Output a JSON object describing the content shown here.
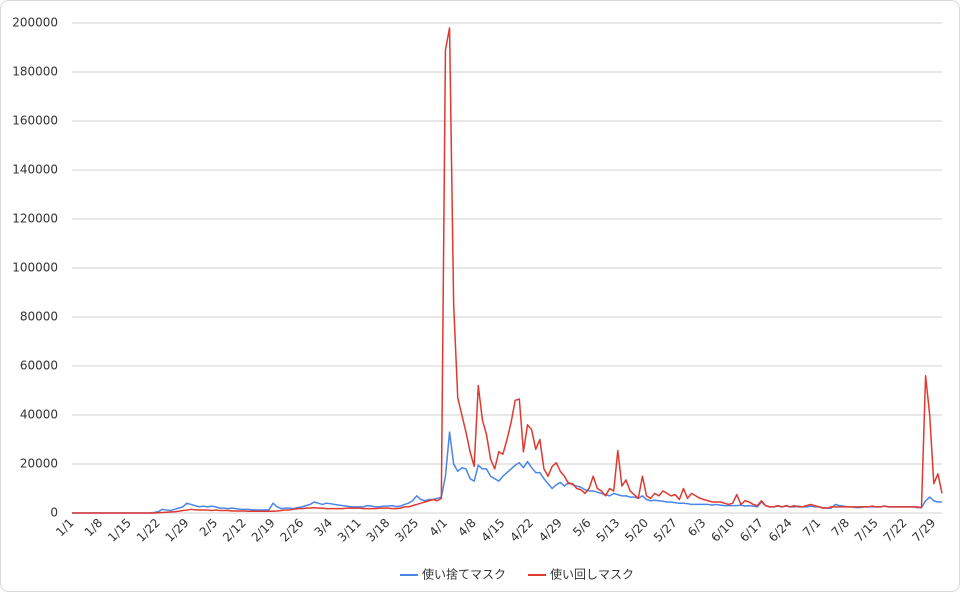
{
  "chart_data": {
    "type": "line",
    "categories": [
      "1/1",
      null,
      null,
      null,
      null,
      null,
      null,
      "1/8",
      null,
      null,
      null,
      null,
      null,
      null,
      "1/15",
      null,
      null,
      null,
      null,
      null,
      null,
      "1/22",
      null,
      null,
      null,
      null,
      null,
      null,
      "1/29",
      null,
      null,
      null,
      null,
      null,
      null,
      "2/5",
      null,
      null,
      null,
      null,
      null,
      null,
      "2/12",
      null,
      null,
      null,
      null,
      null,
      null,
      "2/19",
      null,
      null,
      null,
      null,
      null,
      null,
      "2/26",
      null,
      null,
      null,
      null,
      null,
      null,
      "3/4",
      null,
      null,
      null,
      null,
      null,
      null,
      "3/11",
      null,
      null,
      null,
      null,
      null,
      null,
      "3/18",
      null,
      null,
      null,
      null,
      null,
      null,
      "3/25",
      null,
      null,
      null,
      null,
      null,
      null,
      "4/1",
      null,
      null,
      null,
      null,
      null,
      null,
      "4/8",
      null,
      null,
      null,
      null,
      null,
      null,
      "4/15",
      null,
      null,
      null,
      null,
      null,
      null,
      "4/22",
      null,
      null,
      null,
      null,
      null,
      null,
      "4/29",
      null,
      null,
      null,
      null,
      null,
      null,
      "5/6",
      null,
      null,
      null,
      null,
      null,
      null,
      "5/13",
      null,
      null,
      null,
      null,
      null,
      null,
      "5/20",
      null,
      null,
      null,
      null,
      null,
      null,
      "5/27",
      null,
      null,
      null,
      null,
      null,
      null,
      "6/3",
      null,
      null,
      null,
      null,
      null,
      null,
      "6/10",
      null,
      null,
      null,
      null,
      null,
      null,
      "6/17",
      null,
      null,
      null,
      null,
      null,
      null,
      "6/24",
      null,
      null,
      null,
      null,
      null,
      null,
      "7/1",
      null,
      null,
      null,
      null,
      null,
      null,
      "7/8",
      null,
      null,
      null,
      null,
      null,
      null,
      "7/15",
      null,
      null,
      null,
      null,
      null,
      null,
      "7/22",
      null,
      null,
      null,
      null,
      null,
      null,
      "7/29",
      null,
      null
    ],
    "series": [
      {
        "name": "使い捨てマスク",
        "color": "#4a86e8",
        "values": [
          0,
          0,
          0,
          0,
          0,
          0,
          0,
          0,
          0,
          0,
          0,
          0,
          0,
          0,
          0,
          0,
          0,
          0,
          0,
          0,
          200,
          500,
          1500,
          1200,
          1000,
          1500,
          2000,
          2500,
          4000,
          3500,
          3000,
          2500,
          2800,
          2500,
          2800,
          2500,
          2000,
          2000,
          1800,
          2000,
          1800,
          1500,
          1500,
          1500,
          1300,
          1200,
          1200,
          1200,
          1300,
          4000,
          2500,
          1800,
          2000,
          2000,
          1800,
          2200,
          2500,
          3000,
          3500,
          4500,
          4000,
          3500,
          4000,
          3800,
          3500,
          3200,
          3000,
          2800,
          2500,
          2500,
          2500,
          2500,
          3000,
          2800,
          2500,
          2600,
          2800,
          2800,
          3000,
          2600,
          2800,
          3500,
          4000,
          5000,
          7000,
          5500,
          5000,
          5500,
          5500,
          6000,
          6500,
          15000,
          33000,
          20000,
          17000,
          18500,
          18000,
          14000,
          13000,
          19500,
          18000,
          18000,
          15000,
          14000,
          13000,
          15000,
          16500,
          18000,
          19500,
          20500,
          18500,
          21000,
          18500,
          16500,
          16500,
          14000,
          12000,
          10000,
          11500,
          12500,
          11000,
          12500,
          11500,
          11000,
          10500,
          9500,
          9000,
          9000,
          8500,
          8000,
          7500,
          7000,
          8000,
          7500,
          7000,
          7000,
          6500,
          6500,
          6000,
          7000,
          5500,
          5000,
          5200,
          5000,
          4800,
          4500,
          4500,
          4200,
          4000,
          4000,
          3800,
          3500,
          3500,
          3500,
          3500,
          3500,
          3200,
          3500,
          3200,
          3000,
          3000,
          3000,
          3000,
          3200,
          2800,
          3000,
          2800,
          2500,
          4500,
          3000,
          2500,
          2500,
          2800,
          2500,
          2800,
          2500,
          2500,
          2800,
          2500,
          2500,
          2800,
          2500,
          2500,
          2200,
          2000,
          2000,
          3500,
          3000,
          2800,
          2500,
          2500,
          2200,
          2200,
          2500,
          2500,
          2500,
          2500,
          2500,
          2800,
          2500,
          2500,
          2500,
          2500,
          2500,
          2500,
          2500,
          2200,
          2200,
          5000,
          6500,
          5000,
          4500,
          4500
        ]
      },
      {
        "name": "使い回しマスク",
        "color": "#e0392f",
        "values": [
          0,
          0,
          0,
          0,
          0,
          0,
          0,
          0,
          0,
          0,
          0,
          0,
          0,
          0,
          0,
          0,
          0,
          0,
          0,
          0,
          0,
          100,
          200,
          300,
          400,
          500,
          700,
          1000,
          1200,
          1500,
          1300,
          1200,
          1200,
          1200,
          1000,
          1200,
          1000,
          1000,
          1000,
          800,
          800,
          800,
          800,
          700,
          700,
          700,
          700,
          700,
          700,
          700,
          800,
          1000,
          1200,
          1200,
          1500,
          1800,
          1800,
          2000,
          2000,
          2200,
          2000,
          2000,
          1800,
          1800,
          1800,
          1800,
          1800,
          2000,
          2000,
          2000,
          2000,
          1800,
          1800,
          1800,
          1800,
          2000,
          2000,
          2000,
          1800,
          1800,
          2000,
          2500,
          2500,
          3000,
          3500,
          4000,
          4500,
          5000,
          5500,
          5000,
          6000,
          189000,
          198000,
          85000,
          47000,
          40000,
          33000,
          25000,
          19000,
          52000,
          38000,
          32000,
          22000,
          18000,
          25000,
          24000,
          30000,
          37000,
          46000,
          46500,
          25000,
          36000,
          34000,
          26000,
          30000,
          18000,
          15000,
          19000,
          20500,
          17000,
          15000,
          12000,
          12000,
          10000,
          9500,
          8000,
          10000,
          15000,
          10000,
          9000,
          7000,
          10000,
          9000,
          25500,
          11000,
          13500,
          9000,
          7500,
          6000,
          15000,
          7000,
          6000,
          8000,
          7000,
          9000,
          8000,
          7000,
          7500,
          5500,
          10000,
          6000,
          8000,
          7000,
          6000,
          5500,
          5000,
          4500,
          4500,
          4500,
          4000,
          3500,
          4000,
          7500,
          3500,
          5000,
          4500,
          3500,
          3000,
          5000,
          3000,
          2500,
          2500,
          3000,
          2500,
          3000,
          2500,
          3000,
          2500,
          2500,
          3000,
          3500,
          3000,
          2500,
          2000,
          2000,
          2500,
          2500,
          2500,
          2500,
          2500,
          2500,
          2500,
          2500,
          2500,
          2500,
          2800,
          2500,
          2500,
          2800,
          2500,
          2500,
          2500,
          2500,
          2500,
          2500,
          2500,
          2500,
          2200,
          56000,
          40000,
          12000,
          16000,
          8000
        ]
      }
    ],
    "ylim": [
      0,
      200000
    ],
    "yticks": [
      0,
      20000,
      40000,
      60000,
      80000,
      100000,
      120000,
      140000,
      160000,
      180000,
      200000
    ],
    "grid": true,
    "legend": "bottom"
  }
}
